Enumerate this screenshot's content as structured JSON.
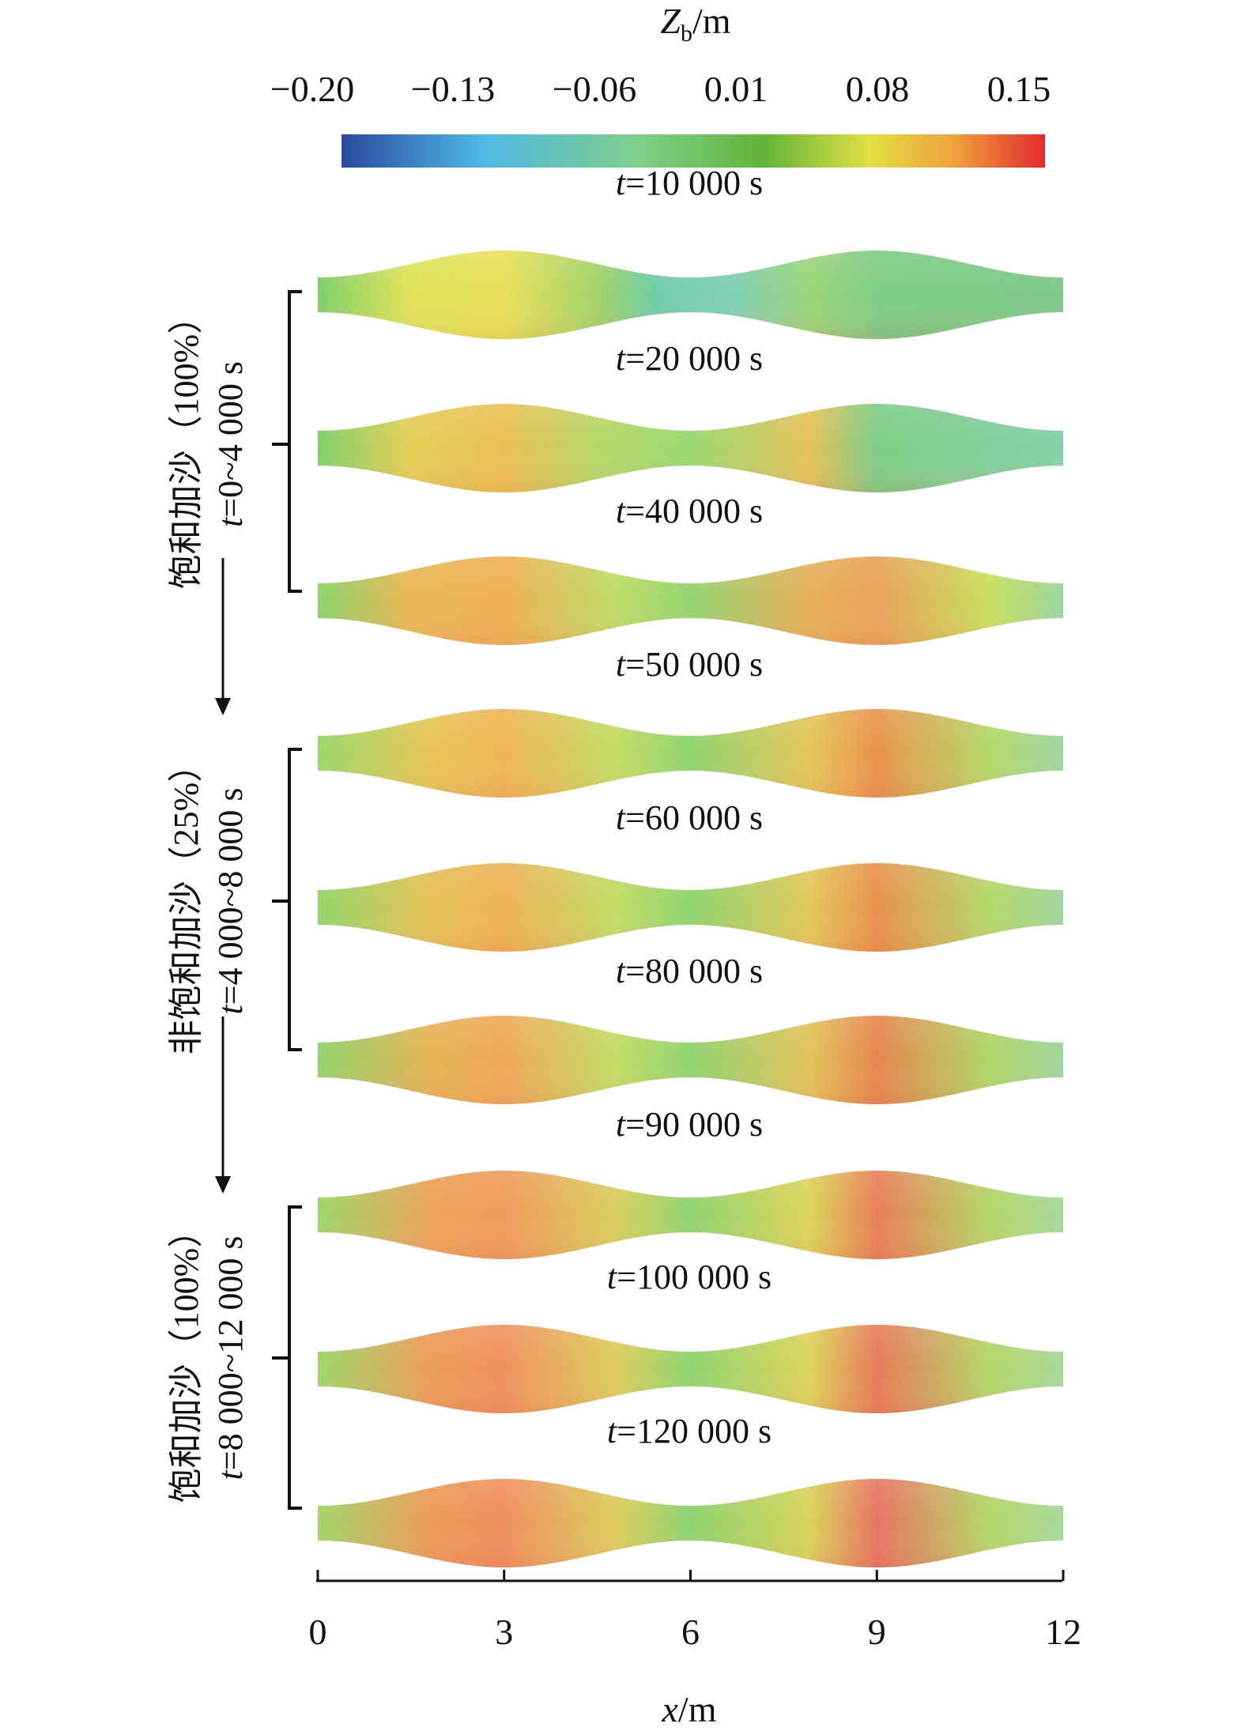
{
  "chart_data": {
    "type": "heatmap",
    "colorbar": {
      "label_var": "Z",
      "label_sub": "b",
      "label_unit": "/m",
      "ticks": [
        "−0.20",
        "−0.13",
        "−0.06",
        "0.01",
        "0.08",
        "0.15"
      ],
      "range": [
        -0.2,
        0.15
      ],
      "colors": [
        "#2a4aa0",
        "#4fb8e6",
        "#7fcf8a",
        "#62b43a",
        "#e2e042",
        "#f0a13c",
        "#e22a2f"
      ]
    },
    "panels": [
      {
        "time_var": "t",
        "time_text": "=10 000 s",
        "phase": 0
      },
      {
        "time_var": "t",
        "time_text": "=20 000 s",
        "phase": 0
      },
      {
        "time_var": "t",
        "time_text": "=40 000 s",
        "phase": 0
      },
      {
        "time_var": "t",
        "time_text": "=50 000 s",
        "phase": 1
      },
      {
        "time_var": "t",
        "time_text": "=60 000 s",
        "phase": 1
      },
      {
        "time_var": "t",
        "time_text": "=80 000 s",
        "phase": 1
      },
      {
        "time_var": "t",
        "time_text": "=90 000 s",
        "phase": 2
      },
      {
        "time_var": "t",
        "time_text": "=100 000 s",
        "phase": 2
      },
      {
        "time_var": "t",
        "time_text": "=120 000 s",
        "phase": 2
      }
    ],
    "phases": [
      {
        "name": "饱和加沙（100%）",
        "time_var": "t",
        "time_text": "=0~4 000 s"
      },
      {
        "name": "非饱和加沙（25%）",
        "time_var": "t",
        "time_text": "=4 000~8 000 s"
      },
      {
        "name": "饱和加沙（100%）",
        "time_var": "t",
        "time_text": "=8 000~12 000 s"
      }
    ],
    "x_axis": {
      "label_var": "x",
      "label_unit": "/m",
      "ticks": [
        0,
        3,
        6,
        9,
        12
      ],
      "range": [
        0,
        12
      ]
    }
  }
}
